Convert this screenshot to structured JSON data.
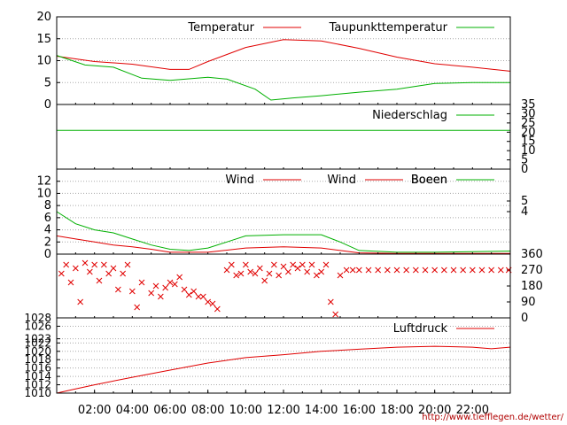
{
  "credit": "http://www.tiefflegen.de/wetter/",
  "colors": {
    "primary": "#e00000",
    "secondary": "#00b000",
    "grid": "#aaaaaa",
    "axis": "#000000"
  },
  "chart_data": [
    {
      "type": "line",
      "id": "temperature",
      "ylim": [
        0,
        20
      ],
      "yticks": [
        "0",
        "5",
        "10",
        "15",
        "20"
      ],
      "legend_position": "top-right",
      "series": [
        {
          "name": "Temperatur",
          "color": "#e00000",
          "x": [
            "00:00",
            "02:00",
            "04:00",
            "06:00",
            "07:00",
            "08:00",
            "10:00",
            "12:00",
            "14:00",
            "16:00",
            "18:00",
            "20:00",
            "22:00",
            "23:59"
          ],
          "values": [
            11,
            9.8,
            9.2,
            8.0,
            8.0,
            9.8,
            13.0,
            14.8,
            14.5,
            12.8,
            10.8,
            9.3,
            8.5,
            7.6
          ]
        },
        {
          "name": "Taupunkttemperatur",
          "color": "#00b000",
          "x": [
            "00:00",
            "01:30",
            "03:00",
            "04:30",
            "06:00",
            "08:00",
            "09:00",
            "10:30",
            "11:20",
            "12:30",
            "14:00",
            "16:00",
            "18:00",
            "20:00",
            "22:00",
            "23:59"
          ],
          "values": [
            11.2,
            9.0,
            8.5,
            6.0,
            5.5,
            6.2,
            5.8,
            3.5,
            1.0,
            1.5,
            2.0,
            2.8,
            3.5,
            4.8,
            5.0,
            5.0
          ]
        }
      ]
    },
    {
      "type": "line",
      "id": "precipitation",
      "ylim": [
        0,
        35
      ],
      "yticks_right": [
        "0",
        "5",
        "10",
        "15",
        "20",
        "25",
        "30",
        "35"
      ],
      "legend_position": "top-right",
      "series": [
        {
          "name": "Niederschlag",
          "color": "#00b000",
          "x": [
            "00:00",
            "23:59"
          ],
          "values": [
            21,
            21
          ]
        }
      ]
    },
    {
      "type": "line",
      "id": "wind",
      "ylim": [
        0,
        14
      ],
      "yticks": [
        "0",
        "2",
        "4",
        "6",
        "8",
        "10",
        "12"
      ],
      "yticks_right": [
        "4",
        "5"
      ],
      "legend_position": "top-right",
      "series": [
        {
          "name": "Wind",
          "color": "#e00000",
          "x": [
            "00:00",
            "01:00",
            "02:00",
            "03:00",
            "04:00",
            "05:00",
            "06:00",
            "08:00",
            "10:00",
            "12:00",
            "14:00",
            "15:00",
            "16:00",
            "18:00",
            "20:00",
            "22:00",
            "23:59"
          ],
          "values": [
            3.0,
            2.5,
            2.0,
            1.5,
            1.2,
            0.8,
            0.3,
            0.3,
            1.0,
            1.2,
            1.0,
            0.6,
            0.2,
            0.1,
            0.1,
            0.1,
            0.1
          ]
        },
        {
          "name": "Boeen",
          "color": "#00b000",
          "x": [
            "00:00",
            "01:00",
            "02:00",
            "03:00",
            "04:00",
            "05:00",
            "06:00",
            "07:00",
            "08:00",
            "09:00",
            "10:00",
            "12:00",
            "14:00",
            "15:00",
            "16:00",
            "18:00",
            "20:00",
            "22:00",
            "23:59"
          ],
          "values": [
            7.0,
            5.0,
            4.0,
            3.5,
            2.5,
            1.5,
            0.8,
            0.6,
            1.0,
            2.0,
            3.0,
            3.2,
            3.2,
            2.0,
            0.6,
            0.3,
            0.3,
            0.4,
            0.5
          ]
        }
      ]
    },
    {
      "type": "scatter",
      "id": "wind_direction",
      "ylim": [
        0,
        360
      ],
      "yticks_right": [
        "0",
        "90",
        "180",
        "270",
        "360"
      ],
      "series": [
        {
          "name": "",
          "color": "#e00000",
          "x": [
            "00:15",
            "00:30",
            "00:45",
            "01:00",
            "01:15",
            "01:30",
            "01:45",
            "02:00",
            "02:15",
            "02:30",
            "02:45",
            "03:00",
            "03:15",
            "03:30",
            "03:45",
            "04:00",
            "04:15",
            "04:30",
            "05:00",
            "05:15",
            "05:30",
            "05:45",
            "06:00",
            "06:15",
            "06:30",
            "06:45",
            "07:00",
            "07:15",
            "07:30",
            "07:45",
            "08:00",
            "08:15",
            "08:30",
            "09:00",
            "09:15",
            "09:30",
            "09:45",
            "10:00",
            "10:15",
            "10:30",
            "10:45",
            "11:00",
            "11:15",
            "11:30",
            "11:45",
            "12:00",
            "12:15",
            "12:30",
            "12:45",
            "13:00",
            "13:15",
            "13:30",
            "13:45",
            "14:00",
            "14:15",
            "14:30",
            "14:45",
            "15:00",
            "15:20",
            "15:40",
            "16:00",
            "16:30",
            "17:00",
            "17:30",
            "18:00",
            "18:30",
            "19:00",
            "19:30",
            "20:00",
            "20:30",
            "21:00",
            "21:30",
            "22:00",
            "22:30",
            "23:00",
            "23:30",
            "23:55"
          ],
          "values": [
            250,
            300,
            200,
            280,
            90,
            310,
            260,
            300,
            210,
            300,
            250,
            280,
            160,
            250,
            300,
            150,
            60,
            200,
            140,
            180,
            120,
            170,
            200,
            190,
            230,
            160,
            130,
            150,
            120,
            120,
            90,
            80,
            50,
            270,
            300,
            240,
            250,
            300,
            260,
            250,
            280,
            210,
            250,
            300,
            240,
            290,
            260,
            300,
            280,
            300,
            260,
            300,
            240,
            260,
            300,
            90,
            20,
            240,
            270,
            270,
            270,
            270,
            270,
            270,
            270,
            270,
            270,
            270,
            270,
            270,
            270,
            270,
            270,
            270,
            270,
            270,
            270
          ]
        }
      ]
    },
    {
      "type": "line",
      "id": "pressure",
      "ylim": [
        1010,
        1028
      ],
      "yticks": [
        "1010",
        "1012",
        "1014",
        "1016",
        "1018",
        "1020",
        "1022",
        "1023",
        "1026",
        "1028"
      ],
      "xticks": [
        "02:00",
        "04:00",
        "06:00",
        "08:00",
        "10:00",
        "12:00",
        "14:00",
        "16:00",
        "18:00",
        "20:00",
        "22:00"
      ],
      "legend_position": "top-right",
      "series": [
        {
          "name": "Luftdruck",
          "color": "#e00000",
          "x": [
            "00:00",
            "01:00",
            "02:00",
            "04:00",
            "06:00",
            "08:00",
            "10:00",
            "12:00",
            "14:00",
            "16:00",
            "18:00",
            "20:00",
            "22:00",
            "23:00",
            "23:59"
          ],
          "values": [
            1010.0,
            1011.0,
            1012.0,
            1013.8,
            1015.5,
            1017.2,
            1018.5,
            1019.2,
            1020.0,
            1020.5,
            1021.0,
            1021.2,
            1021.0,
            1020.6,
            1021.0
          ]
        }
      ]
    }
  ]
}
